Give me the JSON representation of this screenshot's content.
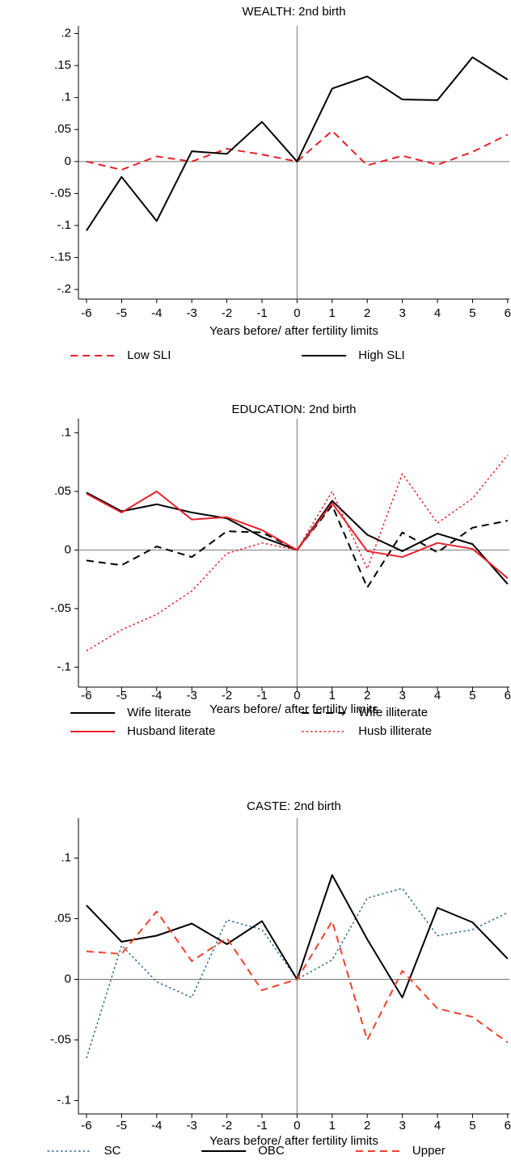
{
  "chart_data": [
    {
      "type": "line",
      "title": "WEALTH: 2nd birth",
      "x_label": "Years before/ after fertility limits",
      "x": [
        -6,
        -5,
        -4,
        -3,
        -2,
        -1,
        0,
        1,
        2,
        3,
        4,
        5,
        6
      ],
      "xlim": [
        -6.23,
        6.05
      ],
      "xticks": [
        -6,
        -5,
        -4,
        -3,
        -2,
        -1,
        0,
        1,
        2,
        3,
        4,
        5,
        6
      ],
      "ylim": [
        -0.215,
        0.212
      ],
      "yticks": [
        {
          "value": 0.2,
          "label": ".2"
        },
        {
          "value": 0.15,
          "label": ".15"
        },
        {
          "value": 0.1,
          "label": ".1"
        },
        {
          "value": 0.05,
          "label": ".05"
        },
        0,
        {
          "value": -0.05,
          "label": "-.05"
        },
        {
          "value": -0.1,
          "label": "-.1"
        },
        {
          "value": -0.15,
          "label": "-.15"
        },
        {
          "value": -0.2,
          "label": "-.2"
        }
      ],
      "hline": 0,
      "xline": 0,
      "legend_columns": 2,
      "series": [
        {
          "name": "Low SLI",
          "color": "#e8202a",
          "dash": "dashed",
          "values": [
            0.0,
            -0.013,
            0.008,
            0.0,
            0.02,
            0.011,
            0,
            0.048,
            -0.006,
            0.009,
            -0.005,
            0.015,
            0.042
          ]
        },
        {
          "name": "High SLI",
          "color": "#000000",
          "dash": "solid",
          "values": [
            -0.108,
            -0.024,
            -0.093,
            0.016,
            0.012,
            0.062,
            0,
            0.114,
            0.133,
            0.097,
            0.096,
            0.163,
            0.128
          ]
        }
      ]
    },
    {
      "type": "line",
      "title": "EDUCATION: 2nd birth",
      "x_label": "Years before/ after fertility limits",
      "x": [
        -6,
        -5,
        -4,
        -3,
        -2,
        -1,
        0,
        1,
        2,
        3,
        4,
        5,
        6
      ],
      "xlim": [
        -6.23,
        6.05
      ],
      "xticks": [
        -6,
        -5,
        -4,
        -3,
        -2,
        -1,
        0,
        1,
        2,
        3,
        4,
        5,
        6
      ],
      "ylim": [
        -0.117,
        0.112
      ],
      "yticks": [
        {
          "value": 0.1,
          "label": ".1"
        },
        {
          "value": 0.05,
          "label": ".05"
        },
        0,
        {
          "value": -0.05,
          "label": "-.05"
        },
        {
          "value": -0.1,
          "label": "-.1"
        }
      ],
      "hline": 0,
      "xline": 0,
      "legend_columns": 2,
      "series": [
        {
          "name": "Wife literate",
          "color": "#000000",
          "dash": "solid",
          "values": [
            0.049,
            0.033,
            0.039,
            0.032,
            0.027,
            0.011,
            0,
            0.042,
            0.013,
            -0.001,
            0.014,
            0.005,
            -0.029
          ]
        },
        {
          "name": "Wife illiterate",
          "color": "#000000",
          "dash": "dashed",
          "values": [
            -0.009,
            -0.013,
            0.003,
            -0.006,
            0.016,
            0.015,
            0,
            0.038,
            -0.032,
            0.015,
            -0.002,
            0.019,
            0.025
          ]
        },
        {
          "name": "Husband literate",
          "color": "#e8202a",
          "dash": "solid",
          "values": [
            0.048,
            0.032,
            0.05,
            0.026,
            0.028,
            0.017,
            0,
            0.04,
            -0.001,
            -0.006,
            0.006,
            0.001,
            -0.024
          ]
        },
        {
          "name": "Husb illiterate",
          "color": "#e8202a",
          "dash": "dotted",
          "values": [
            -0.086,
            -0.068,
            -0.055,
            -0.035,
            -0.003,
            0.006,
            0,
            0.05,
            -0.016,
            0.065,
            0.023,
            0.044,
            0.081
          ]
        }
      ]
    },
    {
      "type": "line",
      "title": "CASTE: 2nd birth",
      "x_label": "Years before/ after fertility limits",
      "x": [
        -6,
        -5,
        -4,
        -3,
        -2,
        -1,
        0,
        1,
        2,
        3,
        4,
        5,
        6
      ],
      "xlim": [
        -6.23,
        6.05
      ],
      "xticks": [
        -6,
        -5,
        -4,
        -3,
        -2,
        -1,
        0,
        1,
        2,
        3,
        4,
        5,
        6
      ],
      "ylim": [
        -0.111,
        0.133
      ],
      "yticks": [
        {
          "value": 0.1,
          "label": ".1"
        },
        {
          "value": 0.05,
          "label": ".05"
        },
        0,
        {
          "value": -0.05,
          "label": "-.05"
        },
        {
          "value": -0.1,
          "label": "-.1"
        }
      ],
      "hline": 0,
      "xline": 0,
      "legend_columns": 3,
      "series": [
        {
          "name": "SC",
          "color": "#2f6a8c",
          "dash": "dotted",
          "values": [
            -0.065,
            0.028,
            -0.002,
            -0.015,
            0.049,
            0.041,
            0,
            0.016,
            0.067,
            0.075,
            0.036,
            0.041,
            0.055
          ]
        },
        {
          "name": "OBC",
          "color": "#000000",
          "dash": "solid",
          "values": [
            0.061,
            0.031,
            0.036,
            0.046,
            0.029,
            0.048,
            0,
            0.086,
            0.033,
            -0.015,
            0.059,
            0.047,
            0.017
          ]
        },
        {
          "name": "Upper",
          "color": "#f0402a",
          "dash": "dashed",
          "values": [
            0.023,
            0.021,
            0.056,
            0.015,
            0.034,
            -0.009,
            0,
            0.048,
            -0.05,
            0.007,
            -0.024,
            -0.031,
            -0.052
          ]
        }
      ]
    }
  ]
}
